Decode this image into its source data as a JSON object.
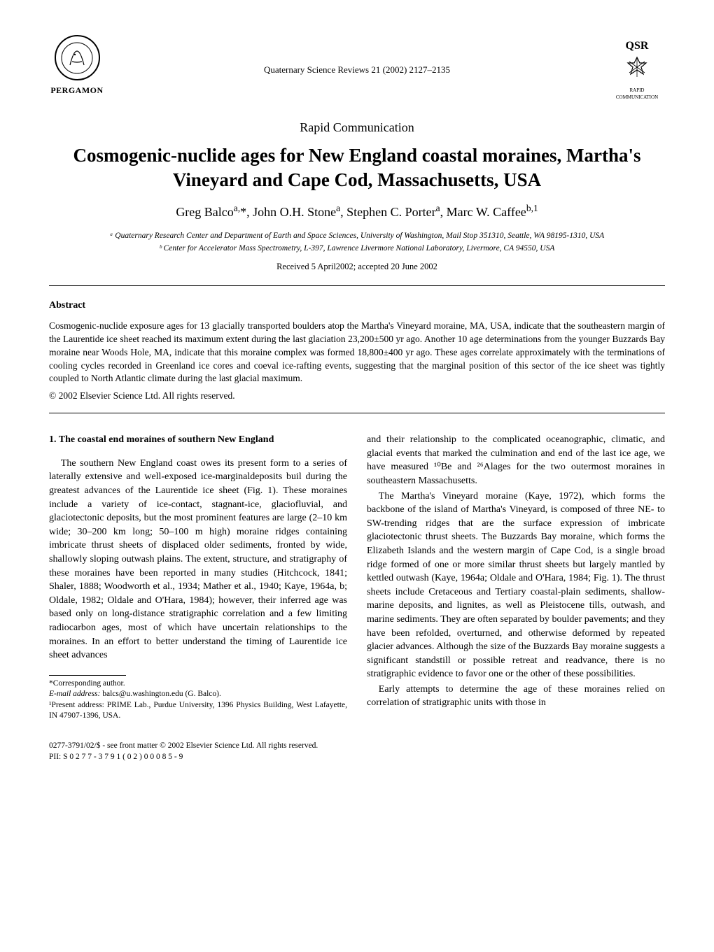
{
  "header": {
    "pergamon_label": "PERGAMON",
    "journal_ref": "Quaternary Science Reviews 21 (2002) 2127–2135",
    "qsr_label": "QSR",
    "qsr_sub": "RAPID COMMUNICATION"
  },
  "article": {
    "rapid_comm": "Rapid Communication",
    "title": "Cosmogenic-nuclide ages for New England coastal moraines, Martha's Vineyard and Cape Cod, Massachusetts, USA",
    "authors_html": "Greg Balco<sup>a,</sup>*, John O.H. Stone<sup>a</sup>, Stephen C. Porter<sup>a</sup>, Marc W. Caffee<sup>b,1</sup>",
    "affil_a": "ᵃ Quaternary Research Center and Department of Earth and Space Sciences, University of Washington, Mail Stop 351310, Seattle, WA 98195-1310, USA",
    "affil_b": "ᵇ Center for Accelerator Mass Spectrometry, L-397, Lawrence Livermore National Laboratory, Livermore, CA 94550, USA",
    "received": "Received 5 April2002; accepted 20 June 2002"
  },
  "abstract": {
    "heading": "Abstract",
    "body": "Cosmogenic-nuclide exposure ages for 13 glacially transported boulders atop the Martha's Vineyard moraine, MA, USA, indicate that the southeastern margin of the Laurentide ice sheet reached its maximum extent during the last glaciation 23,200±500 yr ago. Another 10 age determinations from the younger Buzzards Bay moraine near Woods Hole, MA, indicate that this moraine complex was formed 18,800±400 yr ago. These ages correlate approximately with the terminations of cooling cycles recorded in Greenland ice cores and coeval ice-rafting events, suggesting that the marginal position of this sector of the ice sheet was tightly coupled to North Atlantic climate during the last glacial maximum.",
    "copyright": "© 2002 Elsevier Science Ltd. All rights reserved."
  },
  "section1": {
    "heading": "1. The coastal end moraines of southern New England",
    "left_para1": "The southern New England coast owes its present form to a series of laterally extensive and well-exposed ice-marginaldeposits buil during the greatest advances of the Laurentide ice sheet (Fig. 1). These moraines include a variety of ice-contact, stagnant-ice, glaciofluvial, and glaciotectonic deposits, but the most prominent features are large (2–10 km wide; 30–200 km long; 50–100 m high) moraine ridges containing imbricate thrust sheets of displaced older sediments, fronted by wide, shallowly sloping outwash plains. The extent, structure, and stratigraphy of these moraines have been reported in many studies (Hitchcock, 1841; Shaler, 1888; Woodworth et al., 1934; Mather et al., 1940; Kaye, 1964a, b; Oldale, 1982; Oldale and O'Hara, 1984); however, their inferred age was based only on long-distance stratigraphic correlation and a few limiting radiocarbon ages, most of which have uncertain relationships to the moraines. In an effort to better understand the timing of Laurentide ice sheet advances",
    "right_para1": "and their relationship to the complicated oceanographic, climatic, and glacial events that marked the culmination and end of the last ice age, we have measured ¹⁰Be and ²⁶Alages for the two outermost moraines in southeastern Massachusetts.",
    "right_para2": "The Martha's Vineyard moraine (Kaye, 1972), which forms the backbone of the island of Martha's Vineyard, is composed of three NE- to SW-trending ridges that are the surface expression of imbricate glaciotectonic thrust sheets. The Buzzards Bay moraine, which forms the Elizabeth Islands and the western margin of Cape Cod, is a single broad ridge formed of one or more similar thrust sheets but largely mantled by kettled outwash (Kaye, 1964a; Oldale and O'Hara, 1984; Fig. 1). The thrust sheets include Cretaceous and Tertiary coastal-plain sediments, shallow-marine deposits, and lignites, as well as Pleistocene tills, outwash, and marine sediments. They are often separated by boulder pavements; and they have been refolded, overturned, and otherwise deformed by repeated glacier advances. Although the size of the Buzzards Bay moraine suggests a significant standstill or possible retreat and readvance, there is no stratigraphic evidence to favor one or the other of these possibilities.",
    "right_para3": "Early attempts to determine the age of these moraines relied on correlation of stratigraphic units with those in"
  },
  "footnotes": {
    "corresponding": "*Corresponding author.",
    "email_label": "E-mail address:",
    "email": "balcs@u.washington.edu (G. Balco).",
    "present": "¹Present address: PRIME Lab., Purdue University, 1396 Physics Building, West Lafayette, IN 47907-1396, USA."
  },
  "footer": {
    "line1": "0277-3791/02/$ - see front matter © 2002 Elsevier Science Ltd. All rights reserved.",
    "line2": "PII: S 0 2 7 7 - 3 7 9 1 ( 0 2 ) 0 0 0 8 5 - 9"
  },
  "style": {
    "background_color": "#ffffff",
    "text_color": "#000000",
    "title_fontsize": 27,
    "authors_fontsize": 18,
    "body_fontsize": 14,
    "abstract_fontsize": 13.5,
    "footnote_fontsize": 11.5,
    "font_family": "Times New Roman"
  }
}
